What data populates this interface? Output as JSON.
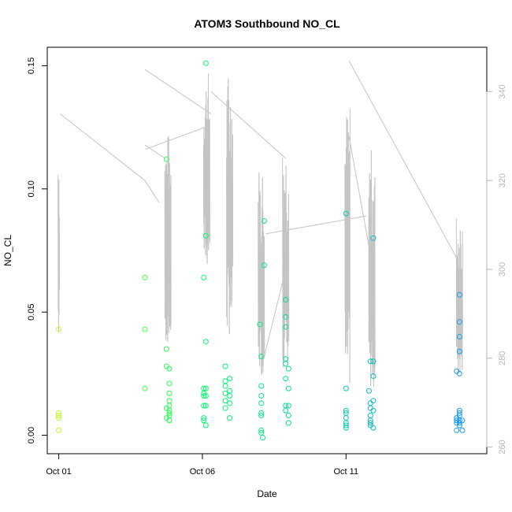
{
  "chart_data": {
    "type": "scatter",
    "title": "ATOM3 Southbound NO_CL",
    "xlabel": "Date",
    "ylabel": "NO_CL",
    "x_axis": {
      "ticks": [
        {
          "day": 1,
          "label": "Oct 01"
        },
        {
          "day": 6,
          "label": "Oct 06"
        },
        {
          "day": 11,
          "label": "Oct 11"
        }
      ],
      "range": [
        0.6,
        15.9
      ]
    },
    "y_left": {
      "ticks": [
        0.0,
        0.05,
        0.1,
        0.15
      ],
      "tick_labels": [
        "0.00",
        "0.05",
        "0.10",
        "0.15"
      ],
      "range": [
        -0.0075,
        0.1575
      ]
    },
    "y_right": {
      "ticks": [
        260,
        280,
        300,
        320,
        340
      ],
      "tick_labels": [
        "260",
        "280",
        "300",
        "320",
        "340"
      ],
      "range": [
        258.5,
        350
      ],
      "color": "#b5b5b5",
      "series_color": "#c4c4c4"
    },
    "points": [
      [
        1.0,
        0.043
      ],
      [
        1.0,
        0.009
      ],
      [
        1.0,
        0.007
      ],
      [
        1.0,
        0.008
      ],
      [
        1.0,
        0.002
      ],
      [
        4.0,
        0.064
      ],
      [
        4.0,
        0.043
      ],
      [
        4.0,
        0.019
      ],
      [
        4.75,
        0.112
      ],
      [
        4.75,
        0.035
      ],
      [
        4.75,
        0.028
      ],
      [
        4.75,
        0.011
      ],
      [
        4.75,
        0.007
      ],
      [
        4.85,
        0.027
      ],
      [
        4.85,
        0.021
      ],
      [
        4.85,
        0.017
      ],
      [
        4.85,
        0.014
      ],
      [
        4.85,
        0.012
      ],
      [
        4.85,
        0.01
      ],
      [
        4.85,
        0.009
      ],
      [
        4.85,
        0.008
      ],
      [
        4.85,
        0.006
      ],
      [
        4.85,
        0.006
      ],
      [
        6.05,
        0.064
      ],
      [
        6.05,
        0.019
      ],
      [
        6.05,
        0.017
      ],
      [
        6.05,
        0.016
      ],
      [
        6.05,
        0.012
      ],
      [
        6.05,
        0.007
      ],
      [
        6.05,
        0.006
      ],
      [
        6.12,
        0.151
      ],
      [
        6.12,
        0.081
      ],
      [
        6.12,
        0.038
      ],
      [
        6.12,
        0.019
      ],
      [
        6.12,
        0.016
      ],
      [
        6.12,
        0.012
      ],
      [
        6.12,
        0.004
      ],
      [
        6.8,
        0.028
      ],
      [
        6.8,
        0.022
      ],
      [
        6.8,
        0.02
      ],
      [
        6.8,
        0.017
      ],
      [
        6.8,
        0.014
      ],
      [
        6.8,
        0.011
      ],
      [
        6.95,
        0.023
      ],
      [
        6.95,
        0.018
      ],
      [
        6.95,
        0.016
      ],
      [
        6.95,
        0.013
      ],
      [
        6.95,
        0.007
      ],
      [
        8.0,
        0.045
      ],
      [
        8.05,
        0.032
      ],
      [
        8.05,
        0.02
      ],
      [
        8.05,
        0.016
      ],
      [
        8.05,
        0.013
      ],
      [
        8.05,
        0.009
      ],
      [
        8.05,
        0.008
      ],
      [
        8.05,
        0.002
      ],
      [
        8.05,
        0.001
      ],
      [
        8.1,
        -0.001
      ],
      [
        8.15,
        0.087
      ],
      [
        8.15,
        0.069
      ],
      [
        8.9,
        0.055
      ],
      [
        8.9,
        0.048
      ],
      [
        8.9,
        0.044
      ],
      [
        8.9,
        0.031
      ],
      [
        8.9,
        0.029
      ],
      [
        8.9,
        0.023
      ],
      [
        8.9,
        0.012
      ],
      [
        8.9,
        0.01
      ],
      [
        9.0,
        0.027
      ],
      [
        9.0,
        0.019
      ],
      [
        9.0,
        0.012
      ],
      [
        9.0,
        0.008
      ],
      [
        9.0,
        0.005
      ],
      [
        11.0,
        0.09
      ],
      [
        11.0,
        0.019
      ],
      [
        11.0,
        0.01
      ],
      [
        11.0,
        0.009
      ],
      [
        11.0,
        0.007
      ],
      [
        11.0,
        0.005
      ],
      [
        11.0,
        0.004
      ],
      [
        11.0,
        0.003
      ],
      [
        11.8,
        0.018
      ],
      [
        11.85,
        0.03
      ],
      [
        11.85,
        0.013
      ],
      [
        11.85,
        0.011
      ],
      [
        11.85,
        0.008
      ],
      [
        11.85,
        0.006
      ],
      [
        11.85,
        0.005
      ],
      [
        11.85,
        0.004
      ],
      [
        11.95,
        0.08
      ],
      [
        11.95,
        0.03
      ],
      [
        11.95,
        0.024
      ],
      [
        11.95,
        0.014
      ],
      [
        11.95,
        0.01
      ],
      [
        11.95,
        0.003
      ],
      [
        14.85,
        0.026
      ],
      [
        14.85,
        0.007
      ],
      [
        14.85,
        0.006
      ],
      [
        14.85,
        0.005
      ],
      [
        14.85,
        0.002
      ],
      [
        14.95,
        0.057
      ],
      [
        14.95,
        0.046
      ],
      [
        14.95,
        0.04
      ],
      [
        14.95,
        0.034
      ],
      [
        14.95,
        0.025
      ],
      [
        14.95,
        0.01
      ],
      [
        14.95,
        0.009
      ],
      [
        14.95,
        0.008
      ],
      [
        14.95,
        0.006
      ],
      [
        14.95,
        0.005
      ],
      [
        14.95,
        0.004
      ],
      [
        15.05,
        0.006
      ],
      [
        15.05,
        0.002
      ]
    ],
    "color_scale": {
      "start_color": "#bbff22",
      "mid_color": "#00ff66",
      "end_color": "#1a9aee"
    },
    "right_series_bursts": [
      {
        "x": 1.0,
        "low": 282,
        "high": 333,
        "n": 8,
        "spread": 0.05
      },
      {
        "x": 4.8,
        "low": 283,
        "high": 331,
        "n": 30,
        "spread": 0.22
      },
      {
        "x": 6.15,
        "low": 300,
        "high": 345,
        "n": 30,
        "spread": 0.22
      },
      {
        "x": 6.95,
        "low": 285,
        "high": 345,
        "n": 30,
        "spread": 0.22
      },
      {
        "x": 8.05,
        "low": 276,
        "high": 324,
        "n": 30,
        "spread": 0.22
      },
      {
        "x": 8.9,
        "low": 278,
        "high": 330,
        "n": 30,
        "spread": 0.22
      },
      {
        "x": 11.05,
        "low": 273,
        "high": 337,
        "n": 25,
        "spread": 0.18
      },
      {
        "x": 11.9,
        "low": 273,
        "high": 327,
        "n": 30,
        "spread": 0.22
      },
      {
        "x": 14.95,
        "low": 276,
        "high": 313,
        "n": 30,
        "spread": 0.22
      }
    ],
    "right_series_connectors": [
      [
        [
          1.05,
          335
        ],
        [
          4.0,
          320
        ]
      ],
      [
        [
          4.0,
          328
        ],
        [
          4.7,
          325
        ]
      ],
      [
        [
          4.0,
          345
        ],
        [
          6.3,
          335
        ]
      ],
      [
        [
          6.3,
          340
        ],
        [
          8.9,
          325
        ]
      ],
      [
        [
          4.0,
          320
        ],
        [
          4.5,
          315
        ]
      ],
      [
        [
          4.0,
          327
        ],
        [
          6.1,
          332
        ]
      ],
      [
        [
          8.2,
          308
        ],
        [
          11.7,
          312
        ]
      ],
      [
        [
          11.1,
          347
        ],
        [
          14.9,
          302
        ]
      ],
      [
        [
          11.1,
          330
        ],
        [
          12.0,
          298
        ]
      ],
      [
        [
          8.9,
          300
        ],
        [
          8.1,
          279
        ]
      ]
    ]
  }
}
